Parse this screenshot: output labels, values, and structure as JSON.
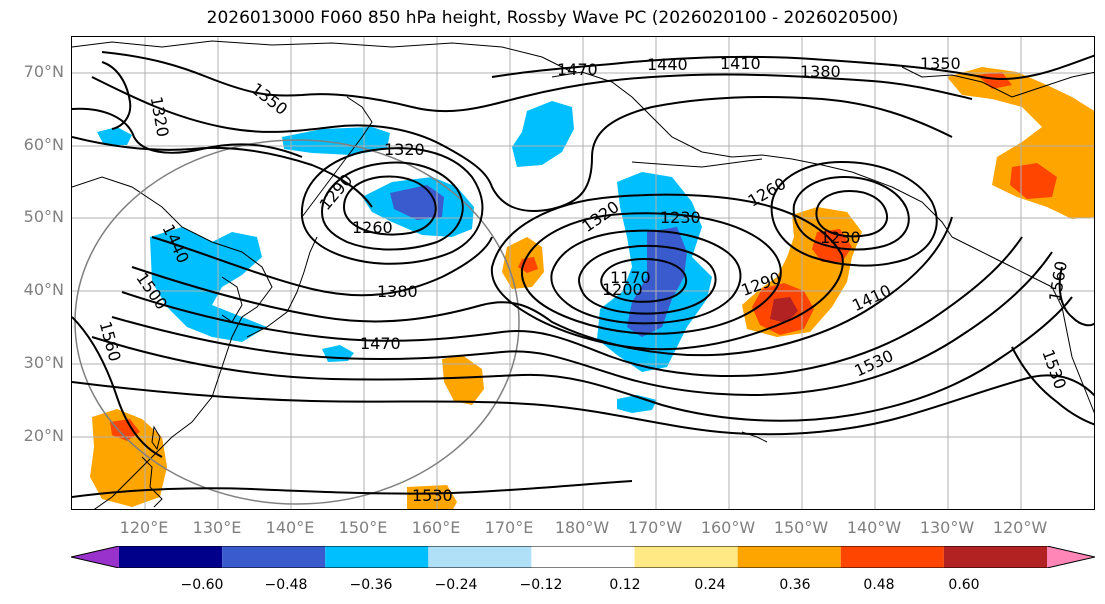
{
  "title": "2026013000 F060 850 hPa height, Rossby Wave PC (2026020100 - 2026020500)",
  "latitude_labels": [
    "70°N",
    "60°N",
    "50°N",
    "40°N",
    "30°N",
    "20°N"
  ],
  "longitude_labels": [
    "120°E",
    "130°E",
    "140°E",
    "150°E",
    "160°E",
    "170°E",
    "180°W",
    "170°W",
    "160°W",
    "150°W",
    "140°W",
    "130°W",
    "120°W"
  ],
  "contour_labels": [
    "1470",
    "1440",
    "1410",
    "1380",
    "1350",
    "1320",
    "1350",
    "1320",
    "1290",
    "1260",
    "1440",
    "1500",
    "1560",
    "1380",
    "1470",
    "1320",
    "1230",
    "1260",
    "1170",
    "1200",
    "1230",
    "1290",
    "1410",
    "1530",
    "1560",
    "1530",
    "1530"
  ],
  "colorbar": {
    "tick_labels": [
      "−0.60",
      "−0.48",
      "−0.36",
      "−0.24",
      "−0.12",
      "0.12",
      "0.24",
      "0.36",
      "0.48",
      "0.60"
    ],
    "colors": [
      "#9932cc",
      "#00008b",
      "#3a5bcd",
      "#00bfff",
      "#b0e0f8",
      "#ffffff",
      "#ffe985",
      "#ffa500",
      "#ff4500",
      "#b22222",
      "#ff86b6"
    ]
  },
  "colors": {
    "coastline": "#000000",
    "contour": "#000000",
    "gridline": "#b0b0b0",
    "circle": "#808080",
    "axis_label": "#808080"
  }
}
